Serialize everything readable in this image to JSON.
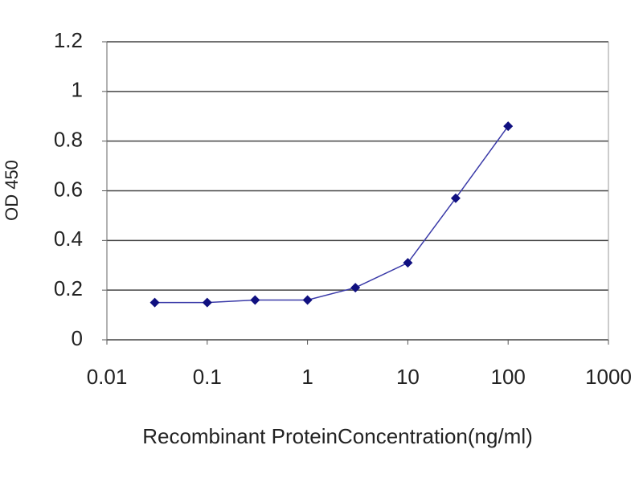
{
  "chart_data": {
    "type": "line",
    "x_label": "Recombinant ProteinConcentration(ng/ml)",
    "y_label": "OD 450",
    "x": [
      0.03,
      0.1,
      0.3,
      1,
      3,
      10,
      30,
      100
    ],
    "values": [
      0.15,
      0.15,
      0.16,
      0.16,
      0.21,
      0.31,
      0.57,
      0.86
    ],
    "color": "#3a3aa8",
    "marker_color": "#101080",
    "xscale": "log",
    "xlim": [
      0.01,
      1000
    ],
    "xticks": [
      0.01,
      0.1,
      1,
      10,
      100,
      1000
    ],
    "ylim": [
      0,
      1.2
    ],
    "yticks": [
      0,
      0.2,
      0.4,
      0.6,
      0.8,
      1,
      1.2
    ],
    "grid": true
  }
}
